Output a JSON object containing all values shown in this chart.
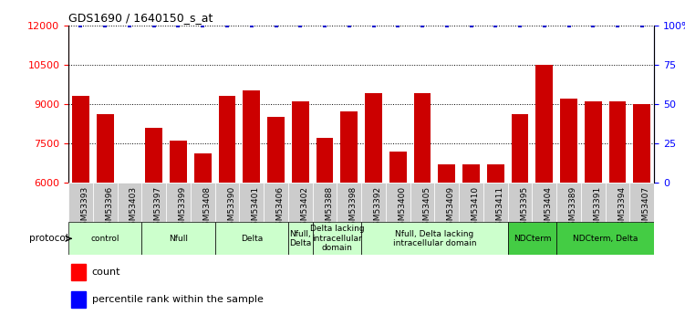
{
  "title": "GDS1690 / 1640150_s_at",
  "samples": [
    "GSM53393",
    "GSM53396",
    "GSM53403",
    "GSM53397",
    "GSM53399",
    "GSM53408",
    "GSM53390",
    "GSM53401",
    "GSM53406",
    "GSM53402",
    "GSM53388",
    "GSM53398",
    "GSM53392",
    "GSM53400",
    "GSM53405",
    "GSM53409",
    "GSM53410",
    "GSM53411",
    "GSM53395",
    "GSM53404",
    "GSM53389",
    "GSM53391",
    "GSM53394",
    "GSM53407"
  ],
  "counts": [
    9300,
    8600,
    0,
    8100,
    7600,
    7100,
    9300,
    9500,
    8500,
    9100,
    7700,
    8700,
    9400,
    7200,
    9400,
    6700,
    6700,
    6700,
    8600,
    10500,
    9200,
    9100,
    9100,
    9000
  ],
  "protocols": [
    {
      "label": "control",
      "start": 0,
      "end": 3,
      "color": "#ccffcc"
    },
    {
      "label": "Nfull",
      "start": 3,
      "end": 6,
      "color": "#ccffcc"
    },
    {
      "label": "Delta",
      "start": 6,
      "end": 9,
      "color": "#ccffcc"
    },
    {
      "label": "Nfull,\nDelta",
      "start": 9,
      "end": 10,
      "color": "#ccffcc"
    },
    {
      "label": "Delta lacking\nintracellular\ndomain",
      "start": 10,
      "end": 12,
      "color": "#ccffcc"
    },
    {
      "label": "Nfull, Delta lacking\nintracellular domain",
      "start": 12,
      "end": 18,
      "color": "#ccffcc"
    },
    {
      "label": "NDCterm",
      "start": 18,
      "end": 20,
      "color": "#44cc44"
    },
    {
      "label": "NDCterm, Delta",
      "start": 20,
      "end": 24,
      "color": "#44cc44"
    }
  ],
  "bar_color": "#cc0000",
  "percentile_color": "#0000cc",
  "ylim_left": [
    6000,
    12000
  ],
  "ylim_right": [
    0,
    100
  ],
  "yticks_left": [
    6000,
    7500,
    9000,
    10500,
    12000
  ],
  "yticks_right": [
    0,
    25,
    50,
    75,
    100
  ],
  "background_color": "#ffffff",
  "grid_color": "#000000",
  "tick_bg_color": "#cccccc"
}
